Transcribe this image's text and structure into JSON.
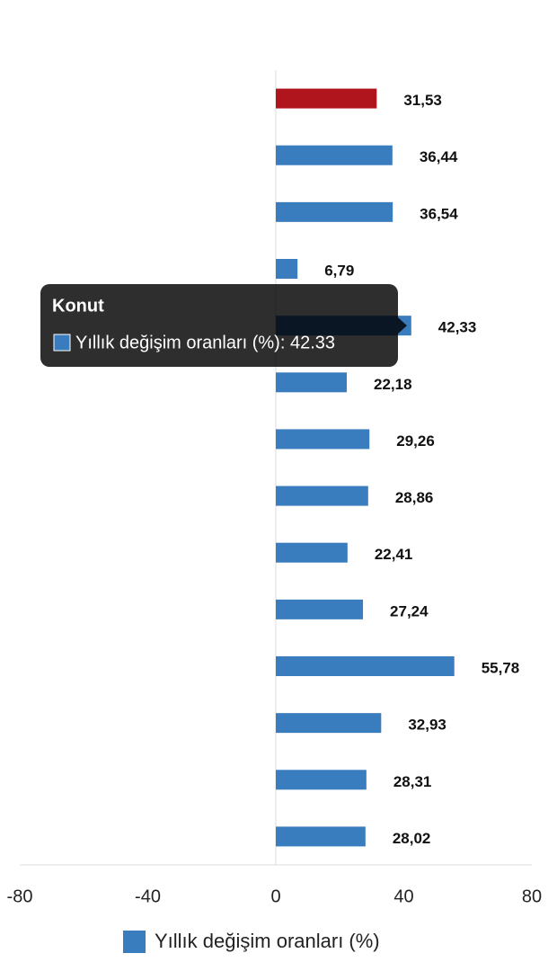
{
  "chart_data": {
    "type": "hbar",
    "categories": [
      null,
      null,
      null,
      null,
      "Konut",
      null,
      null,
      null,
      null,
      null,
      null,
      null,
      null,
      null
    ],
    "series": [
      {
        "name": "Yıllık değişim oranları (%)",
        "color": "#3a7dbf",
        "colors": [
          "#b0141c",
          "#3a7dbf",
          "#3a7dbf",
          "#3a7dbf",
          "#3a7dbf",
          "#3a7dbf",
          "#3a7dbf",
          "#3a7dbf",
          "#3a7dbf",
          "#3a7dbf",
          "#3a7dbf",
          "#3a7dbf",
          "#3a7dbf",
          "#3a7dbf"
        ],
        "values": [
          31.53,
          36.44,
          36.54,
          6.79,
          42.33,
          22.18,
          29.26,
          28.86,
          22.41,
          27.24,
          55.78,
          32.93,
          28.31,
          28.02
        ],
        "value_labels": [
          "31,53",
          "36,44",
          "36,54",
          "6,79",
          "42,33",
          "22,18",
          "29,26",
          "28,86",
          "22,41",
          "27,24",
          "55,78",
          "32,93",
          "28,31",
          "28,02"
        ]
      }
    ],
    "xlim": [
      -80,
      80
    ],
    "xticks": [
      -80,
      -40,
      0,
      40,
      80
    ],
    "legend": "bottom",
    "tooltip": {
      "title": "Konut",
      "text": "Yıllık değişim oranları (%): 42.33"
    }
  }
}
